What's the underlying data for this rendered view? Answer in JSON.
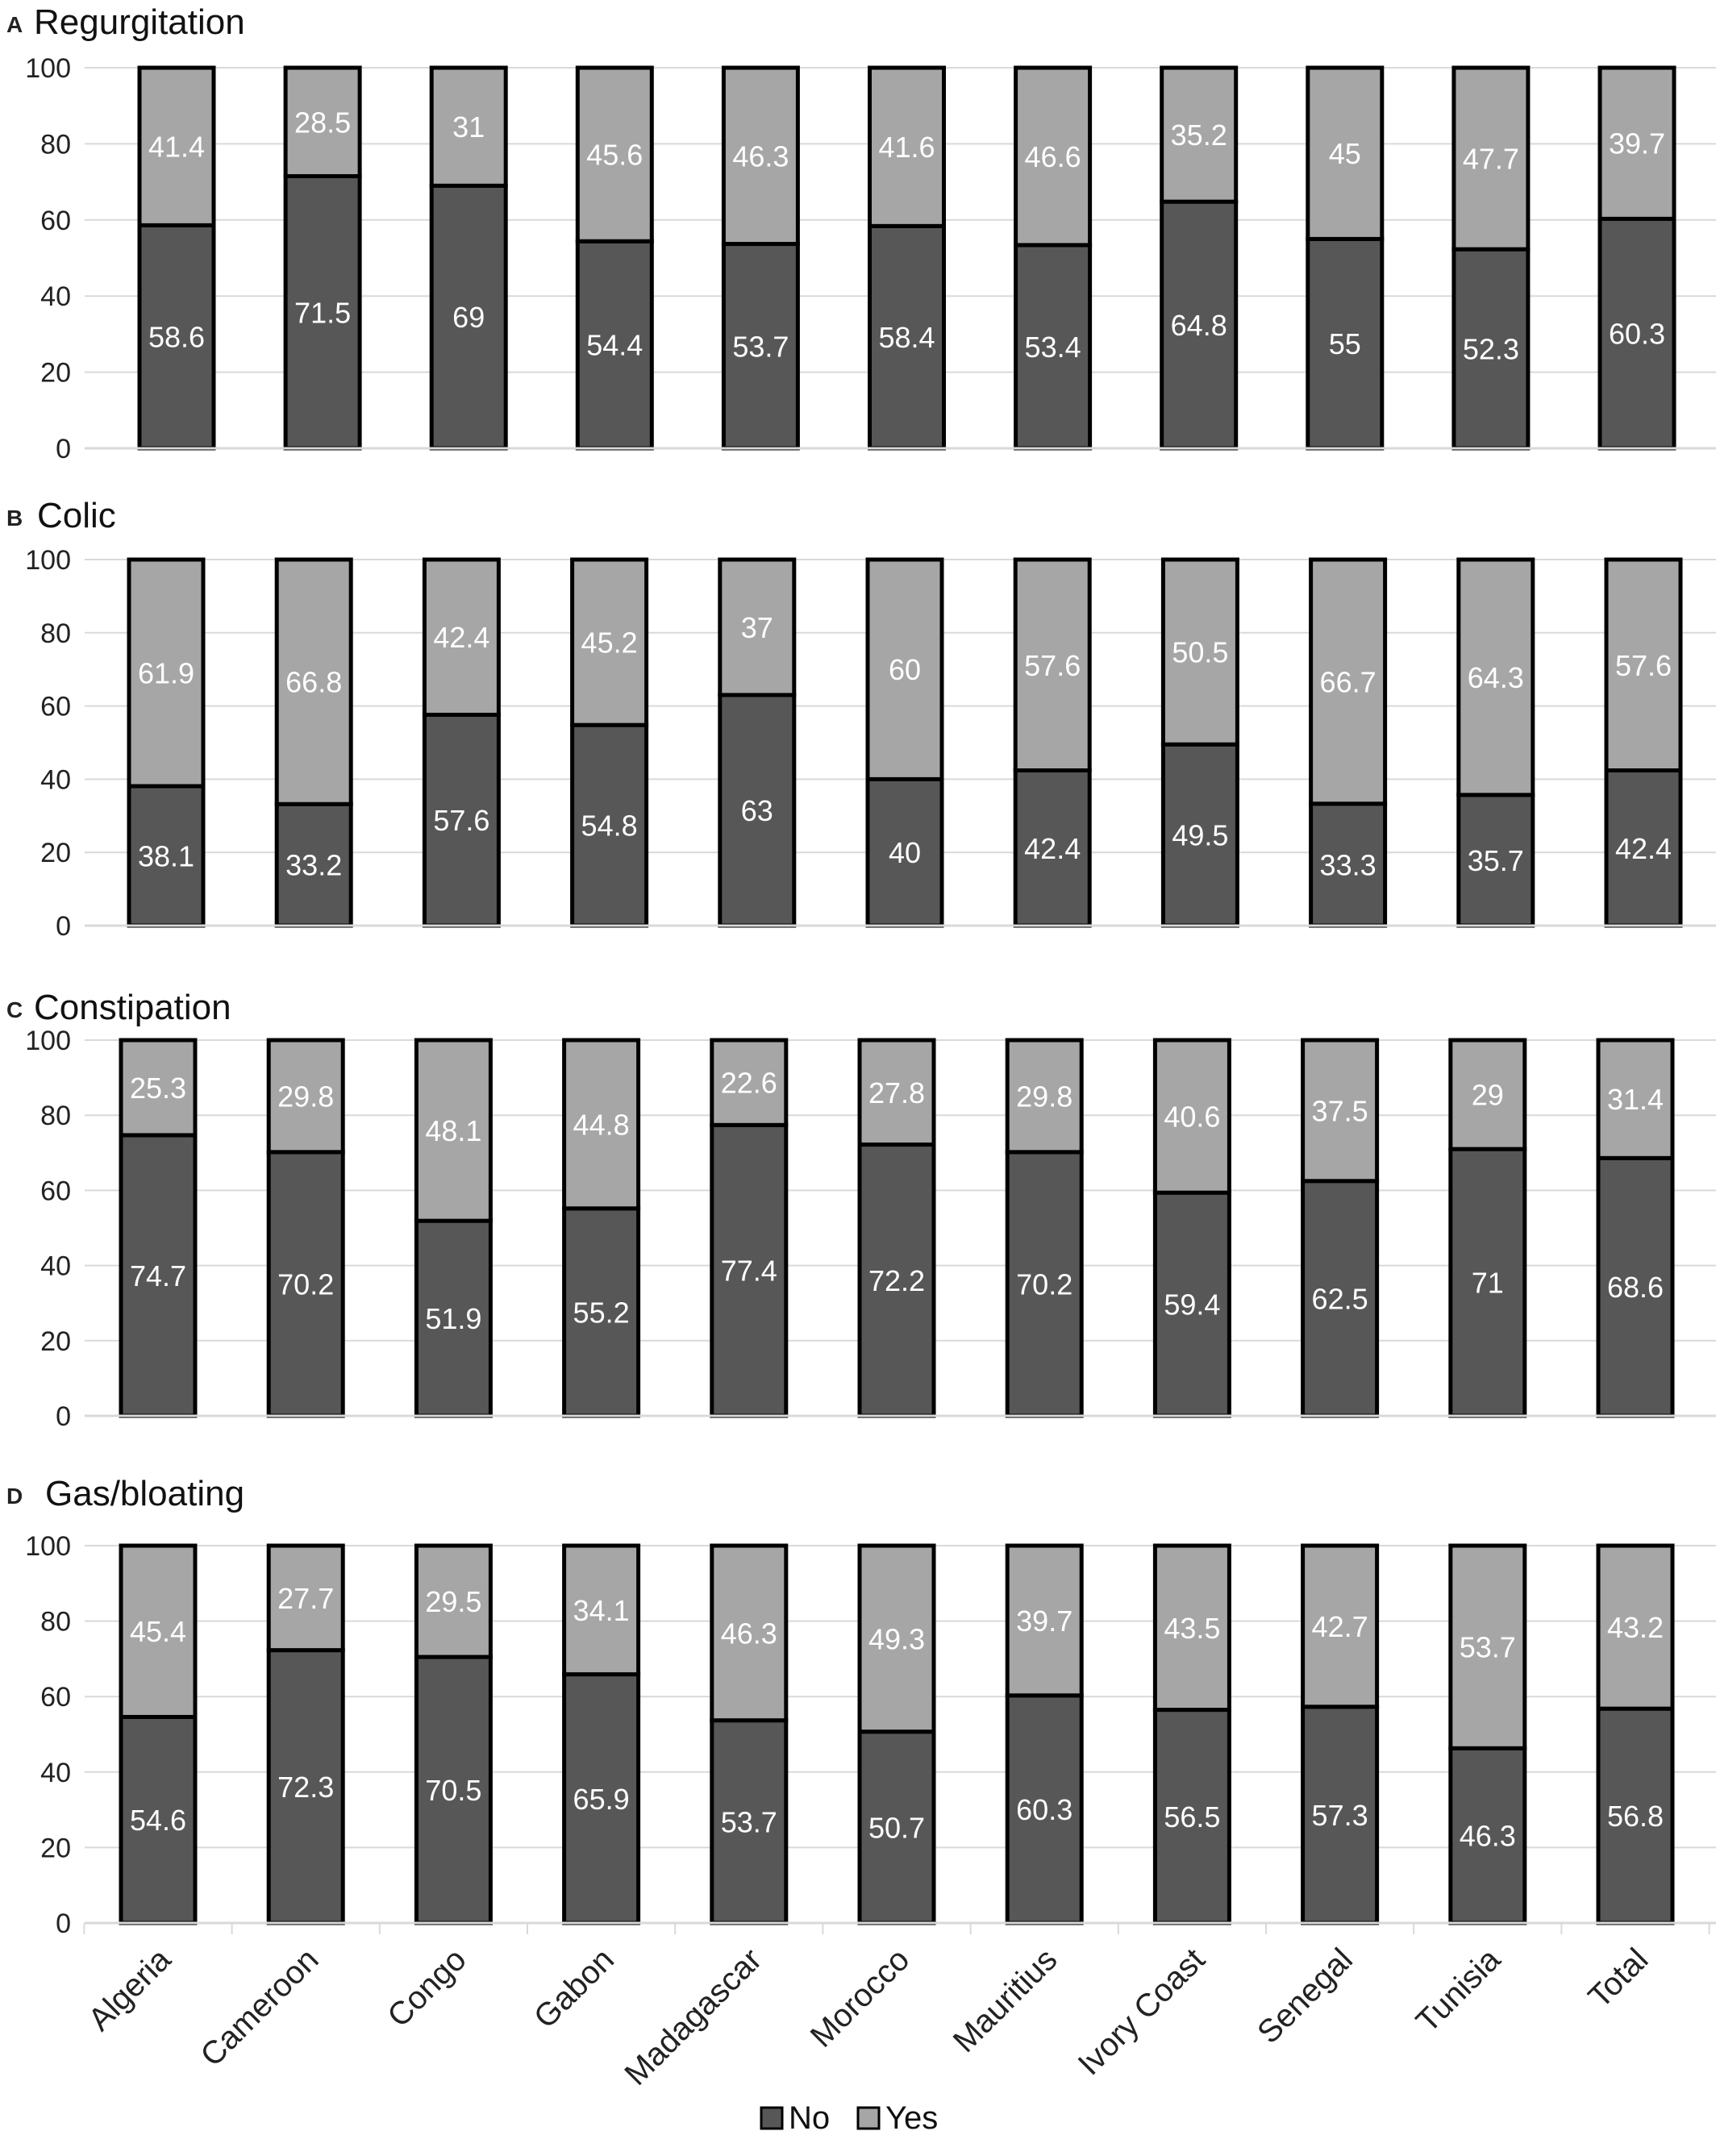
{
  "colors": {
    "no": "#575757",
    "yes": "#a6a6a6",
    "outline": "#000000",
    "grid": "#d9d9d9",
    "label": "#ffffff"
  },
  "legend": [
    {
      "key": "no",
      "label": "No"
    },
    {
      "key": "yes",
      "label": "Yes"
    }
  ],
  "chart_data": [
    {
      "type": "bar",
      "stacked": true,
      "panel_letter": "A",
      "title": "Regurgitation",
      "categories": [
        "Algeria",
        "Cameroon",
        "Congo",
        "Gabon",
        "Madagascar",
        "Morocco",
        "Mauritius",
        "Ivory Coast",
        "Senegal",
        "Tunisia",
        "Total"
      ],
      "series": [
        {
          "name": "No",
          "values": [
            58.6,
            71.5,
            69,
            54.4,
            53.7,
            58.4,
            53.4,
            64.8,
            55,
            52.3,
            60.3
          ]
        },
        {
          "name": "Yes",
          "values": [
            41.4,
            28.5,
            31,
            45.6,
            46.3,
            41.6,
            46.6,
            35.2,
            45,
            47.7,
            39.7
          ]
        }
      ],
      "ylim": [
        0,
        100
      ],
      "yticks": [
        0,
        20,
        40,
        60,
        80,
        100
      ],
      "grid": true
    },
    {
      "type": "bar",
      "stacked": true,
      "panel_letter": "B",
      "title": "Colic",
      "categories": [
        "Algeria",
        "Cameroon",
        "Congo",
        "Gabon",
        "Madagascar",
        "Morocco",
        "Mauritius",
        "Ivory Coast",
        "Senegal",
        "Tunisia",
        "Total"
      ],
      "series": [
        {
          "name": "No",
          "values": [
            38.1,
            33.2,
            57.6,
            54.8,
            63,
            40,
            42.4,
            49.5,
            33.3,
            35.7,
            42.4
          ]
        },
        {
          "name": "Yes",
          "values": [
            61.9,
            66.8,
            42.4,
            45.2,
            37,
            60,
            57.6,
            50.5,
            66.7,
            64.3,
            57.6
          ]
        }
      ],
      "ylim": [
        0,
        100
      ],
      "yticks": [
        0,
        20,
        40,
        60,
        80,
        100
      ],
      "grid": true
    },
    {
      "type": "bar",
      "stacked": true,
      "panel_letter": "C",
      "title": "Constipation",
      "categories": [
        "Algeria",
        "Cameroon",
        "Congo",
        "Gabon",
        "Madagascar",
        "Morocco",
        "Mauritius",
        "Ivory Coast",
        "Senegal",
        "Tunisia",
        "Total"
      ],
      "series": [
        {
          "name": "No",
          "values": [
            74.7,
            70.2,
            51.9,
            55.2,
            77.4,
            72.2,
            70.2,
            59.4,
            62.5,
            71,
            68.6
          ]
        },
        {
          "name": "Yes",
          "values": [
            25.3,
            29.8,
            48.1,
            44.8,
            22.6,
            27.8,
            29.8,
            40.6,
            37.5,
            29,
            31.4
          ]
        }
      ],
      "ylim": [
        0,
        100
      ],
      "yticks": [
        0,
        20,
        40,
        60,
        80,
        100
      ],
      "grid": true
    },
    {
      "type": "bar",
      "stacked": true,
      "panel_letter": "D",
      "title": "Gas/bloating",
      "categories": [
        "Algeria",
        "Cameroon",
        "Congo",
        "Gabon",
        "Madagascar",
        "Morocco",
        "Mauritius",
        "Ivory Coast",
        "Senegal",
        "Tunisia",
        "Total"
      ],
      "series": [
        {
          "name": "No",
          "values": [
            54.6,
            72.3,
            70.5,
            65.9,
            53.7,
            50.7,
            60.3,
            56.5,
            57.3,
            46.3,
            56.8
          ]
        },
        {
          "name": "Yes",
          "values": [
            45.4,
            27.7,
            29.5,
            34.1,
            46.3,
            49.3,
            39.7,
            43.5,
            42.7,
            53.7,
            43.2
          ]
        }
      ],
      "ylim": [
        0,
        100
      ],
      "yticks": [
        0,
        20,
        40,
        60,
        80,
        100
      ],
      "grid": true,
      "show_category_labels": true
    }
  ]
}
